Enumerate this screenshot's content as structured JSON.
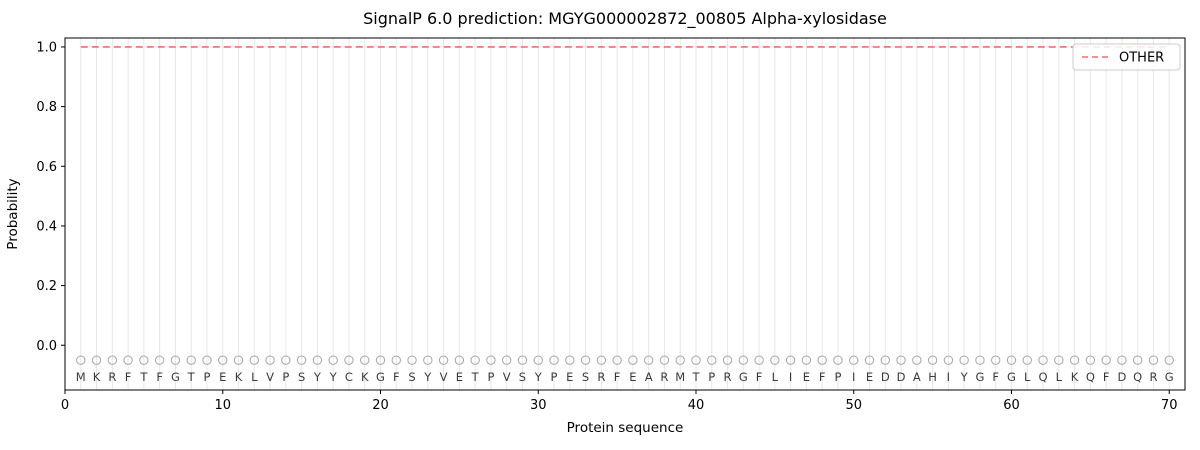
{
  "chart_data": {
    "type": "line",
    "title": "SignalP 6.0 prediction: MGYG000002872_00805 Alpha-xylosidase",
    "xlabel": "Protein sequence",
    "ylabel": "Probability",
    "xlim": [
      0,
      71
    ],
    "ylim": [
      -0.15,
      1.03
    ],
    "xticks": [
      0,
      10,
      20,
      30,
      40,
      50,
      60,
      70
    ],
    "yticks": [
      0.0,
      0.2,
      0.4,
      0.6,
      0.8,
      1.0
    ],
    "grid": "vertical-per-residue",
    "legend": {
      "position": "upper right",
      "entries": [
        {
          "label": "OTHER",
          "line_style": "dashed",
          "color": "#f26d6d"
        }
      ]
    },
    "series": [
      {
        "name": "OTHER",
        "style": "dashed",
        "color": "#f26d6d",
        "constant_value": 1.0,
        "x_start": 1,
        "x_end": 70
      }
    ],
    "sequence": "MKRFTFGTPEKLVPSYYCKGFSYVETPVSYPESRFEARMTPRGFLIEFPIEDDAHIYGFGLQLKQFDQRG",
    "sequence_length": 70,
    "marker_y": -0.05,
    "letter_y": -0.107,
    "marker_symbol": "open-circle",
    "colors": {
      "background": "#ffffff",
      "grid": "#e7e7e7",
      "other_line": "#f26d6d",
      "marker_edge": "#a6a6a6",
      "letter": "#3a3a3a",
      "spine": "#000000",
      "tick_label": "#000000",
      "legend_border": "#cccccc"
    }
  }
}
